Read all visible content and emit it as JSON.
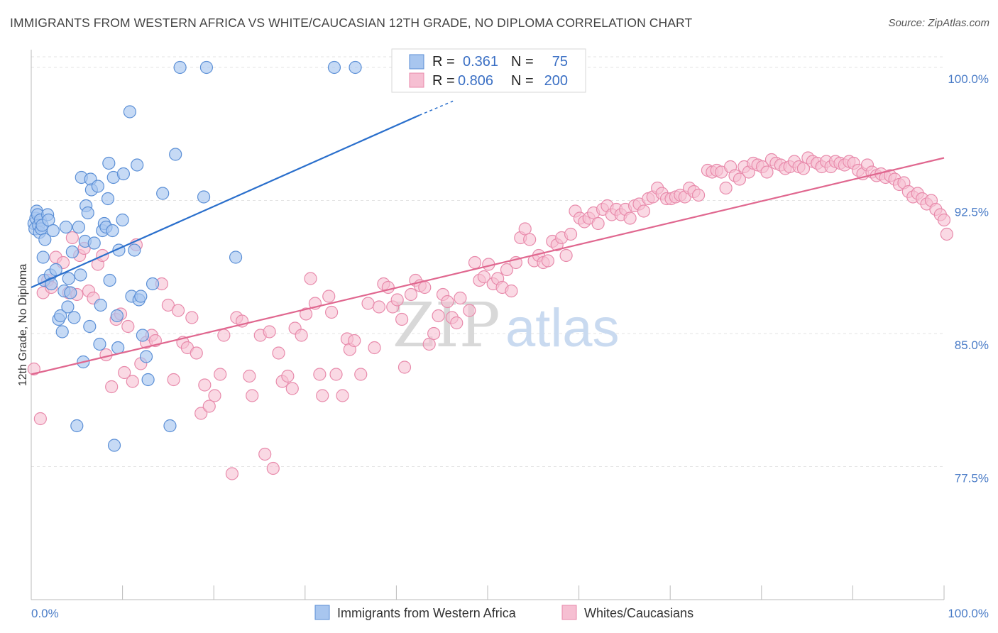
{
  "title": "IMMIGRANTS FROM WESTERN AFRICA VS WHITE/CAUCASIAN 12TH GRADE, NO DIPLOMA CORRELATION CHART",
  "source": "Source: ZipAtlas.com",
  "watermark": {
    "zip": "ZIP",
    "atlas": "atlas"
  },
  "legend": {
    "r_label": "R =",
    "n_label": "N =",
    "rows": [
      {
        "r": "0.361",
        "n": "75"
      },
      {
        "r": "0.806",
        "n": "200"
      }
    ]
  },
  "colors": {
    "blue_fill": "#a8c6ef",
    "blue_stroke": "#5b8fd6",
    "blue_line": "#2a6fcc",
    "pink_fill": "#f6bfd2",
    "pink_stroke": "#e88aab",
    "pink_line": "#e0678f",
    "grid": "#e3e3e3",
    "tick_text": "#4a7cc7"
  },
  "chart_data": {
    "type": "scatter",
    "title": "IMMIGRANTS FROM WESTERN AFRICA VS WHITE/CAUCASIAN 12TH GRADE, NO DIPLOMA CORRELATION CHART",
    "xlabel": "",
    "ylabel": "12th Grade, No Diploma",
    "x_tick_labels": [
      "0.0%",
      "100.0%"
    ],
    "y_tick_labels": [
      "100.0%",
      "92.5%",
      "85.0%",
      "77.5%"
    ],
    "y_ticks": [
      100.0,
      92.5,
      85.0,
      77.5
    ],
    "xlim": [
      0,
      100
    ],
    "ylim": [
      70.0,
      101.0
    ],
    "grid": true,
    "legend_position": "top-center",
    "series": [
      {
        "name": "Immigrants from Western Africa",
        "color": "#a8c6ef",
        "trend": {
          "x": [
            0.0,
            42.5
          ],
          "y": [
            87.6,
            97.3
          ],
          "dashed_to": [
            46.2,
            98.1
          ]
        },
        "points": [
          [
            0.3,
            91.2
          ],
          [
            0.4,
            90.9
          ],
          [
            0.5,
            91.5
          ],
          [
            0.6,
            91.9
          ],
          [
            0.7,
            91.7
          ],
          [
            0.8,
            91.1
          ],
          [
            0.9,
            90.7
          ],
          [
            1.0,
            91.4
          ],
          [
            1.1,
            90.9
          ],
          [
            1.2,
            91.1
          ],
          [
            1.3,
            89.3
          ],
          [
            1.4,
            88.0
          ],
          [
            1.5,
            90.3
          ],
          [
            1.8,
            91.7
          ],
          [
            1.9,
            91.4
          ],
          [
            2.1,
            88.3
          ],
          [
            2.2,
            87.8
          ],
          [
            2.4,
            90.8
          ],
          [
            2.7,
            88.6
          ],
          [
            3.0,
            85.8
          ],
          [
            3.2,
            86.0
          ],
          [
            3.4,
            85.1
          ],
          [
            3.6,
            87.4
          ],
          [
            3.8,
            91.0
          ],
          [
            4.0,
            86.5
          ],
          [
            4.1,
            88.1
          ],
          [
            4.3,
            87.3
          ],
          [
            4.5,
            89.6
          ],
          [
            4.7,
            85.9
          ],
          [
            5.0,
            79.8
          ],
          [
            5.2,
            91.0
          ],
          [
            5.4,
            88.3
          ],
          [
            5.5,
            93.8
          ],
          [
            5.7,
            83.4
          ],
          [
            5.9,
            90.2
          ],
          [
            6.0,
            92.2
          ],
          [
            6.2,
            91.8
          ],
          [
            6.4,
            85.4
          ],
          [
            6.5,
            93.7
          ],
          [
            6.6,
            93.1
          ],
          [
            6.9,
            90.1
          ],
          [
            7.3,
            93.3
          ],
          [
            7.5,
            84.4
          ],
          [
            7.6,
            86.6
          ],
          [
            7.8,
            90.8
          ],
          [
            8.0,
            91.2
          ],
          [
            8.2,
            91.0
          ],
          [
            8.4,
            92.6
          ],
          [
            8.5,
            94.6
          ],
          [
            8.6,
            88.0
          ],
          [
            8.9,
            90.8
          ],
          [
            9.0,
            93.8
          ],
          [
            9.1,
            78.7
          ],
          [
            9.4,
            86.0
          ],
          [
            9.5,
            84.2
          ],
          [
            9.6,
            89.7
          ],
          [
            10.1,
            94.0
          ],
          [
            10.0,
            91.4
          ],
          [
            10.8,
            97.5
          ],
          [
            11.0,
            87.1
          ],
          [
            11.3,
            89.7
          ],
          [
            11.6,
            94.5
          ],
          [
            11.8,
            86.9
          ],
          [
            12.0,
            87.1
          ],
          [
            12.2,
            84.9
          ],
          [
            12.6,
            83.7
          ],
          [
            12.8,
            82.4
          ],
          [
            13.3,
            87.8
          ],
          [
            14.4,
            92.9
          ],
          [
            15.2,
            79.8
          ],
          [
            15.8,
            95.1
          ],
          [
            16.3,
            100.0
          ],
          [
            18.9,
            92.7
          ],
          [
            19.2,
            100.0
          ],
          [
            22.4,
            89.3
          ],
          [
            33.2,
            100.0
          ],
          [
            35.5,
            100.0
          ]
        ]
      },
      {
        "name": "Whites/Caucasians",
        "color": "#f6bfd2",
        "trend": {
          "x": [
            0.0,
            100.0
          ],
          "y": [
            82.7,
            94.9
          ]
        },
        "points": [
          [
            0.3,
            83.0
          ],
          [
            1.0,
            80.2
          ],
          [
            1.3,
            87.3
          ],
          [
            1.8,
            88.0
          ],
          [
            2.2,
            87.6
          ],
          [
            2.7,
            89.3
          ],
          [
            3.5,
            89.0
          ],
          [
            4.1,
            87.3
          ],
          [
            4.5,
            90.4
          ],
          [
            5.0,
            87.2
          ],
          [
            5.3,
            89.4
          ],
          [
            5.8,
            89.8
          ],
          [
            6.3,
            87.4
          ],
          [
            6.8,
            87.0
          ],
          [
            7.3,
            88.9
          ],
          [
            7.8,
            89.4
          ],
          [
            8.2,
            83.8
          ],
          [
            8.8,
            82.0
          ],
          [
            9.3,
            85.8
          ],
          [
            9.8,
            86.1
          ],
          [
            10.2,
            82.8
          ],
          [
            10.6,
            85.4
          ],
          [
            11.1,
            82.3
          ],
          [
            11.5,
            90.0
          ],
          [
            12.0,
            83.3
          ],
          [
            12.6,
            84.5
          ],
          [
            13.2,
            84.9
          ],
          [
            13.6,
            84.6
          ],
          [
            14.3,
            87.8
          ],
          [
            15.0,
            86.6
          ],
          [
            15.6,
            82.4
          ],
          [
            16.1,
            86.3
          ],
          [
            16.6,
            84.5
          ],
          [
            17.1,
            84.2
          ],
          [
            17.6,
            85.9
          ],
          [
            18.1,
            83.9
          ],
          [
            18.6,
            80.5
          ],
          [
            19.0,
            82.1
          ],
          [
            19.5,
            80.9
          ],
          [
            20.1,
            81.5
          ],
          [
            20.7,
            82.7
          ],
          [
            21.1,
            84.9
          ],
          [
            22.0,
            77.1
          ],
          [
            22.5,
            85.9
          ],
          [
            23.1,
            85.7
          ],
          [
            23.9,
            82.6
          ],
          [
            24.2,
            81.5
          ],
          [
            25.1,
            84.9
          ],
          [
            25.6,
            78.2
          ],
          [
            26.1,
            85.1
          ],
          [
            26.5,
            77.4
          ],
          [
            27.1,
            83.9
          ],
          [
            27.5,
            82.3
          ],
          [
            28.1,
            82.6
          ],
          [
            28.6,
            81.9
          ],
          [
            28.9,
            85.3
          ],
          [
            29.6,
            84.9
          ],
          [
            30.1,
            86.1
          ],
          [
            30.6,
            88.1
          ],
          [
            31.1,
            86.7
          ],
          [
            31.6,
            82.7
          ],
          [
            31.9,
            81.5
          ],
          [
            32.6,
            87.1
          ],
          [
            32.9,
            86.2
          ],
          [
            33.4,
            82.7
          ],
          [
            34.1,
            81.5
          ],
          [
            34.6,
            84.7
          ],
          [
            34.9,
            84.1
          ],
          [
            35.4,
            84.6
          ],
          [
            36.1,
            82.7
          ],
          [
            36.9,
            86.7
          ],
          [
            37.6,
            84.2
          ],
          [
            38.1,
            86.5
          ],
          [
            38.6,
            87.8
          ],
          [
            39.1,
            87.6
          ],
          [
            39.6,
            86.5
          ],
          [
            40.1,
            86.9
          ],
          [
            40.6,
            85.8
          ],
          [
            40.9,
            83.1
          ],
          [
            41.6,
            87.2
          ],
          [
            42.1,
            88.0
          ],
          [
            42.6,
            87.7
          ],
          [
            43.1,
            87.6
          ],
          [
            43.6,
            84.4
          ],
          [
            44.1,
            85.0
          ],
          [
            44.6,
            86.0
          ],
          [
            45.1,
            87.2
          ],
          [
            45.6,
            86.8
          ],
          [
            46.1,
            85.9
          ],
          [
            46.6,
            85.6
          ],
          [
            47.0,
            87.0
          ],
          [
            48.0,
            86.3
          ],
          [
            48.6,
            89.0
          ],
          [
            49.1,
            88.0
          ],
          [
            49.6,
            88.2
          ],
          [
            50.1,
            88.9
          ],
          [
            50.6,
            87.8
          ],
          [
            51.1,
            88.1
          ],
          [
            51.6,
            87.6
          ],
          [
            52.1,
            88.6
          ],
          [
            52.6,
            87.4
          ],
          [
            53.1,
            89.0
          ],
          [
            53.6,
            90.4
          ],
          [
            54.1,
            90.9
          ],
          [
            54.6,
            90.3
          ],
          [
            55.1,
            89.1
          ],
          [
            55.6,
            89.4
          ],
          [
            56.1,
            89.0
          ],
          [
            56.6,
            89.1
          ],
          [
            57.1,
            90.2
          ],
          [
            57.6,
            90.0
          ],
          [
            58.1,
            90.4
          ],
          [
            58.6,
            89.4
          ],
          [
            59.1,
            90.6
          ],
          [
            59.6,
            91.9
          ],
          [
            60.1,
            91.5
          ],
          [
            60.6,
            91.3
          ],
          [
            61.1,
            91.5
          ],
          [
            61.6,
            91.8
          ],
          [
            62.1,
            91.2
          ],
          [
            62.6,
            92.0
          ],
          [
            63.1,
            92.2
          ],
          [
            63.6,
            91.7
          ],
          [
            64.1,
            92.0
          ],
          [
            64.6,
            91.7
          ],
          [
            65.1,
            92.0
          ],
          [
            65.6,
            91.5
          ],
          [
            66.1,
            92.2
          ],
          [
            66.6,
            92.3
          ],
          [
            67.1,
            91.9
          ],
          [
            67.6,
            92.6
          ],
          [
            68.1,
            92.7
          ],
          [
            68.6,
            93.2
          ],
          [
            69.1,
            92.9
          ],
          [
            69.6,
            92.6
          ],
          [
            70.1,
            92.6
          ],
          [
            70.6,
            92.7
          ],
          [
            71.1,
            92.8
          ],
          [
            71.6,
            92.7
          ],
          [
            72.1,
            93.2
          ],
          [
            72.6,
            93.0
          ],
          [
            73.1,
            92.8
          ],
          [
            74.1,
            94.2
          ],
          [
            74.6,
            94.1
          ],
          [
            75.1,
            94.2
          ],
          [
            75.6,
            94.1
          ],
          [
            76.1,
            93.2
          ],
          [
            76.6,
            94.4
          ],
          [
            77.1,
            93.9
          ],
          [
            77.6,
            93.7
          ],
          [
            78.1,
            94.4
          ],
          [
            78.6,
            94.1
          ],
          [
            79.1,
            94.6
          ],
          [
            79.6,
            94.5
          ],
          [
            80.1,
            94.4
          ],
          [
            80.6,
            94.1
          ],
          [
            81.1,
            94.8
          ],
          [
            81.6,
            94.6
          ],
          [
            82.1,
            94.5
          ],
          [
            82.6,
            94.3
          ],
          [
            83.1,
            94.4
          ],
          [
            83.6,
            94.7
          ],
          [
            84.1,
            94.4
          ],
          [
            84.6,
            94.3
          ],
          [
            85.1,
            94.9
          ],
          [
            85.6,
            94.7
          ],
          [
            86.1,
            94.6
          ],
          [
            86.6,
            94.4
          ],
          [
            87.1,
            94.7
          ],
          [
            87.6,
            94.4
          ],
          [
            88.1,
            94.7
          ],
          [
            88.6,
            94.6
          ],
          [
            89.1,
            94.5
          ],
          [
            89.6,
            94.7
          ],
          [
            90.1,
            94.6
          ],
          [
            90.6,
            94.2
          ],
          [
            91.1,
            94.0
          ],
          [
            91.6,
            94.5
          ],
          [
            92.1,
            94.1
          ],
          [
            92.6,
            93.9
          ],
          [
            93.1,
            94.0
          ],
          [
            93.6,
            93.8
          ],
          [
            94.1,
            93.9
          ],
          [
            94.6,
            93.7
          ],
          [
            95.1,
            93.4
          ],
          [
            95.6,
            93.5
          ],
          [
            96.1,
            93.0
          ],
          [
            96.6,
            92.7
          ],
          [
            97.1,
            92.9
          ],
          [
            97.6,
            92.6
          ],
          [
            98.1,
            92.3
          ],
          [
            98.6,
            92.5
          ],
          [
            99.1,
            92.0
          ],
          [
            99.6,
            91.7
          ],
          [
            100.0,
            91.4
          ],
          [
            100.3,
            90.6
          ]
        ]
      }
    ]
  },
  "bottom_legend": [
    "Immigrants from Western Africa",
    "Whites/Caucasians"
  ]
}
